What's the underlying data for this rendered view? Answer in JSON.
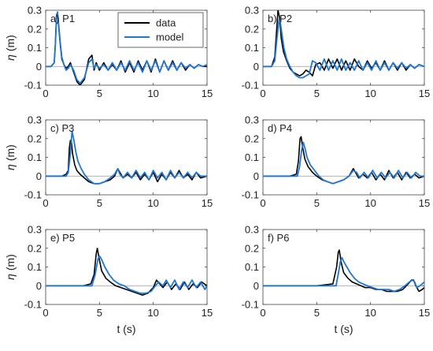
{
  "colors": {
    "data": "#000000",
    "model": "#1f77d0",
    "zero_line": "#999999",
    "axis": "#444444"
  },
  "legend": {
    "items": [
      {
        "label": "data",
        "color": "#000000"
      },
      {
        "label": "model",
        "color": "#1f77d0"
      }
    ],
    "placement": "top-right of panel a"
  },
  "chart_data": [
    {
      "type": "line",
      "panel": "a) P1",
      "xlabel": "",
      "ylabel": "η (m)",
      "xlim": [
        0,
        15
      ],
      "ylim": [
        -0.1,
        0.3
      ],
      "xticks": [
        0,
        5,
        10,
        15
      ],
      "yticks": [
        -0.1,
        0,
        0.1,
        0.2,
        0.3
      ],
      "series": [
        {
          "name": "data",
          "x": [
            0,
            0.5,
            0.8,
            0.9,
            1.0,
            1.1,
            1.2,
            1.35,
            1.5,
            1.7,
            1.9,
            2.1,
            2.3,
            2.6,
            2.9,
            3.2,
            3.6,
            4.0,
            4.3,
            4.5,
            4.7,
            5.0,
            5.4,
            5.8,
            6.2,
            6.6,
            7.0,
            7.4,
            7.8,
            8.2,
            8.6,
            9.0,
            9.4,
            9.8,
            10.2,
            10.6,
            11.0,
            11.4,
            11.8,
            12.2,
            12.6,
            13.0,
            13.4,
            13.8,
            14.2,
            14.6,
            15
          ],
          "y": [
            0,
            0,
            0.02,
            0.12,
            0.27,
            0.29,
            0.22,
            0.12,
            0.04,
            0.01,
            -0.01,
            0.0,
            0.02,
            -0.03,
            -0.08,
            -0.1,
            -0.07,
            0.04,
            0.06,
            -0.02,
            0.02,
            -0.02,
            0.02,
            -0.02,
            0.01,
            -0.02,
            0.03,
            -0.03,
            0.02,
            -0.03,
            0.03,
            -0.02,
            0.03,
            -0.03,
            0.04,
            -0.03,
            0.03,
            -0.02,
            0.03,
            -0.02,
            0.02,
            -0.02,
            0.01,
            -0.01,
            0.01,
            0,
            0
          ]
        },
        {
          "name": "model",
          "x": [
            0,
            0.5,
            0.8,
            0.9,
            1.0,
            1.1,
            1.2,
            1.35,
            1.5,
            1.7,
            1.9,
            2.1,
            2.3,
            2.6,
            2.9,
            3.2,
            3.6,
            4.0,
            4.3,
            4.5,
            4.7,
            5.0,
            5.4,
            5.8,
            6.2,
            6.6,
            7.0,
            7.4,
            7.8,
            8.2,
            8.6,
            9.0,
            9.4,
            9.8,
            10.2,
            10.6,
            11.0,
            11.4,
            11.8,
            12.2,
            12.6,
            13.0,
            13.4,
            13.8,
            14.2,
            14.6,
            15
          ],
          "y": [
            0,
            0,
            0.02,
            0.11,
            0.25,
            0.29,
            0.23,
            0.13,
            0.05,
            0.01,
            -0.02,
            -0.01,
            0.01,
            -0.02,
            -0.07,
            -0.09,
            -0.06,
            0.02,
            0.04,
            -0.01,
            0.01,
            -0.01,
            0.01,
            -0.02,
            0.02,
            -0.02,
            0.02,
            -0.02,
            0.03,
            -0.02,
            0.02,
            -0.03,
            0.03,
            -0.02,
            0.03,
            -0.03,
            0.03,
            -0.02,
            0.02,
            -0.02,
            0.02,
            -0.01,
            0.01,
            -0.01,
            0.01,
            0,
            0.01
          ]
        }
      ]
    },
    {
      "type": "line",
      "panel": "b) P2",
      "xlabel": "",
      "ylabel": "",
      "xlim": [
        0,
        15
      ],
      "ylim": [
        -0.1,
        0.3
      ],
      "xticks": [
        0,
        5,
        10,
        15
      ],
      "yticks": [
        -0.1,
        0,
        0.1,
        0.2,
        0.3
      ],
      "series": [
        {
          "name": "data",
          "x": [
            0,
            0.8,
            1.1,
            1.3,
            1.4,
            1.55,
            1.7,
            1.9,
            2.2,
            2.5,
            2.8,
            3.1,
            3.4,
            3.7,
            4.0,
            4.3,
            4.6,
            4.9,
            5.3,
            5.7,
            6.1,
            6.5,
            6.9,
            7.3,
            7.7,
            8.1,
            8.5,
            8.9,
            9.3,
            9.7,
            10.1,
            10.5,
            10.9,
            11.3,
            11.7,
            12.1,
            12.5,
            12.9,
            13.3,
            13.7,
            14.1,
            14.5,
            15
          ],
          "y": [
            0,
            0.0,
            0.05,
            0.22,
            0.3,
            0.26,
            0.15,
            0.08,
            0.03,
            -0.01,
            -0.03,
            -0.04,
            -0.05,
            -0.04,
            -0.02,
            -0.03,
            -0.05,
            0.01,
            0.02,
            -0.02,
            0.04,
            -0.01,
            0.04,
            -0.02,
            0.03,
            -0.02,
            0.04,
            0.0,
            -0.02,
            0.03,
            -0.01,
            0.02,
            -0.02,
            0.03,
            -0.02,
            0.02,
            -0.02,
            0.02,
            -0.02,
            0.01,
            -0.01,
            0.01,
            0
          ]
        },
        {
          "name": "model",
          "x": [
            0,
            0.8,
            1.1,
            1.3,
            1.5,
            1.6,
            1.75,
            1.95,
            2.2,
            2.5,
            2.8,
            3.1,
            3.4,
            3.7,
            4.0,
            4.3,
            4.6,
            4.9,
            5.3,
            5.7,
            6.1,
            6.5,
            6.9,
            7.3,
            7.7,
            8.1,
            8.5,
            8.9,
            9.3,
            9.7,
            10.1,
            10.5,
            10.9,
            11.3,
            11.7,
            12.1,
            12.5,
            12.9,
            13.3,
            13.7,
            14.1,
            14.5,
            15
          ],
          "y": [
            0,
            0.0,
            0.03,
            0.15,
            0.25,
            0.24,
            0.18,
            0.1,
            0.04,
            0.0,
            -0.03,
            -0.05,
            -0.06,
            -0.06,
            -0.05,
            -0.04,
            0.03,
            0.02,
            -0.02,
            0.04,
            -0.02,
            0.03,
            -0.02,
            0.04,
            -0.02,
            0.02,
            -0.02,
            0.03,
            -0.02,
            0.02,
            -0.02,
            0.03,
            -0.02,
            0.02,
            -0.02,
            0.02,
            -0.01,
            0.02,
            -0.01,
            0.01,
            -0.01,
            0.01,
            0
          ]
        }
      ]
    },
    {
      "type": "line",
      "panel": "c) P3",
      "xlabel": "",
      "ylabel": "η (m)",
      "xlim": [
        0,
        15
      ],
      "ylim": [
        -0.1,
        0.3
      ],
      "xticks": [
        0,
        5,
        10,
        15
      ],
      "yticks": [
        -0.1,
        0,
        0.1,
        0.2,
        0.3
      ],
      "series": [
        {
          "name": "data",
          "x": [
            0,
            1.5,
            1.9,
            2.1,
            2.2,
            2.3,
            2.4,
            2.5,
            2.7,
            2.9,
            3.2,
            3.6,
            4.0,
            4.5,
            5.0,
            5.5,
            6.0,
            6.4,
            6.7,
            6.9,
            7.2,
            7.6,
            8.0,
            8.4,
            8.8,
            9.2,
            9.6,
            10.0,
            10.4,
            10.8,
            11.2,
            11.6,
            12.0,
            12.4,
            12.8,
            13.2,
            13.6,
            14.0,
            14.4,
            15
          ],
          "y": [
            0,
            0.0,
            0.01,
            0.03,
            0.15,
            0.19,
            0.18,
            0.12,
            0.06,
            0.03,
            0.01,
            -0.01,
            -0.03,
            -0.04,
            -0.04,
            -0.03,
            -0.02,
            0.0,
            0.04,
            0.02,
            -0.01,
            0.01,
            -0.01,
            0.02,
            -0.02,
            0.01,
            -0.02,
            0.02,
            -0.03,
            0.01,
            -0.02,
            0.02,
            -0.01,
            0.03,
            -0.01,
            0.01,
            -0.02,
            0.02,
            -0.01,
            0
          ]
        },
        {
          "name": "model",
          "x": [
            0,
            1.5,
            1.9,
            2.1,
            2.3,
            2.45,
            2.6,
            2.8,
            3.0,
            3.3,
            3.6,
            4.0,
            4.5,
            5.0,
            5.5,
            6.0,
            6.4,
            6.7,
            6.9,
            7.2,
            7.6,
            8.0,
            8.4,
            8.8,
            9.2,
            9.6,
            10.0,
            10.4,
            10.8,
            11.2,
            11.6,
            12.0,
            12.4,
            12.8,
            13.2,
            13.6,
            14.0,
            14.4,
            15
          ],
          "y": [
            0,
            0.0,
            0.0,
            0.02,
            0.12,
            0.24,
            0.2,
            0.13,
            0.08,
            0.04,
            0.01,
            -0.02,
            -0.04,
            -0.04,
            -0.03,
            -0.01,
            0.01,
            0.04,
            0.01,
            -0.01,
            0.02,
            -0.01,
            0.03,
            -0.01,
            0.02,
            -0.02,
            0.03,
            -0.01,
            0.02,
            -0.02,
            0.03,
            -0.01,
            0.02,
            -0.01,
            0.02,
            -0.01,
            0.02,
            0.0,
            0
          ]
        }
      ]
    },
    {
      "type": "line",
      "panel": "d) P4",
      "xlabel": "",
      "ylabel": "",
      "xlim": [
        0,
        15
      ],
      "ylim": [
        -0.1,
        0.3
      ],
      "xticks": [
        0,
        5,
        10,
        15
      ],
      "yticks": [
        -0.1,
        0,
        0.1,
        0.2,
        0.3
      ],
      "series": [
        {
          "name": "data",
          "x": [
            0,
            2.5,
            3.1,
            3.3,
            3.45,
            3.55,
            3.7,
            3.9,
            4.2,
            4.6,
            5.0,
            5.5,
            6.0,
            6.5,
            7.0,
            7.5,
            8.0,
            8.4,
            8.6,
            8.9,
            9.3,
            9.7,
            10.1,
            10.5,
            10.9,
            11.3,
            11.7,
            12.1,
            12.5,
            12.9,
            13.3,
            13.7,
            14.1,
            14.5,
            15
          ],
          "y": [
            0,
            0.0,
            0.01,
            0.08,
            0.2,
            0.21,
            0.15,
            0.09,
            0.05,
            0.02,
            0.0,
            -0.02,
            -0.03,
            -0.04,
            -0.03,
            -0.02,
            0.0,
            0.04,
            0.02,
            -0.01,
            0.01,
            -0.01,
            0.02,
            -0.02,
            0.01,
            -0.02,
            0.03,
            -0.01,
            0.02,
            -0.02,
            0.02,
            -0.01,
            0.01,
            -0.01,
            0
          ]
        },
        {
          "name": "model",
          "x": [
            0,
            2.5,
            3.2,
            3.4,
            3.6,
            3.75,
            3.9,
            4.1,
            4.4,
            4.8,
            5.2,
            5.6,
            6.0,
            6.5,
            7.0,
            7.5,
            8.0,
            8.4,
            8.7,
            9.0,
            9.4,
            9.8,
            10.2,
            10.6,
            11.0,
            11.4,
            11.8,
            12.2,
            12.6,
            13.0,
            13.4,
            13.8,
            14.2,
            14.6,
            15
          ],
          "y": [
            0,
            0.0,
            0.0,
            0.05,
            0.14,
            0.18,
            0.15,
            0.1,
            0.06,
            0.03,
            0.0,
            -0.02,
            -0.03,
            -0.04,
            -0.03,
            -0.02,
            0.0,
            0.03,
            0.02,
            -0.01,
            0.02,
            -0.01,
            0.03,
            -0.01,
            0.02,
            -0.01,
            0.02,
            -0.01,
            0.03,
            -0.01,
            0.02,
            -0.01,
            0.02,
            0.0,
            0
          ]
        }
      ]
    },
    {
      "type": "line",
      "panel": "e) P5",
      "xlabel": "t (s)",
      "ylabel": "η (m)",
      "xlim": [
        0,
        15
      ],
      "ylim": [
        -0.1,
        0.3
      ],
      "xticks": [
        0,
        5,
        10,
        15
      ],
      "yticks": [
        -0.1,
        0,
        0.1,
        0.2,
        0.3
      ],
      "series": [
        {
          "name": "data",
          "x": [
            0,
            3.5,
            4.2,
            4.5,
            4.7,
            4.8,
            4.95,
            5.2,
            5.6,
            6.0,
            6.5,
            7.0,
            7.5,
            8.0,
            8.5,
            9.0,
            9.5,
            10.0,
            10.3,
            10.6,
            10.9,
            11.3,
            11.7,
            12.1,
            12.5,
            12.9,
            13.3,
            13.7,
            14.1,
            14.5,
            15
          ],
          "y": [
            0,
            0.0,
            0.01,
            0.06,
            0.17,
            0.2,
            0.15,
            0.08,
            0.04,
            0.02,
            0.0,
            -0.01,
            -0.02,
            -0.03,
            -0.04,
            -0.05,
            -0.04,
            -0.01,
            0.03,
            0.01,
            -0.01,
            0.02,
            -0.02,
            0.01,
            -0.02,
            0.02,
            -0.02,
            0.01,
            -0.01,
            0.02,
            0
          ]
        },
        {
          "name": "model",
          "x": [
            0,
            3.5,
            4.3,
            4.6,
            4.85,
            5.0,
            5.2,
            5.5,
            5.9,
            6.3,
            6.8,
            7.3,
            7.8,
            8.3,
            8.8,
            9.3,
            9.8,
            10.2,
            10.5,
            10.9,
            11.2,
            11.6,
            12.0,
            12.4,
            12.8,
            13.2,
            13.6,
            14.0,
            14.4,
            14.8,
            15
          ],
          "y": [
            0,
            0.0,
            0.0,
            0.06,
            0.14,
            0.16,
            0.14,
            0.1,
            0.06,
            0.03,
            0.01,
            0.0,
            -0.02,
            -0.03,
            -0.04,
            -0.04,
            -0.03,
            0.0,
            0.02,
            0.0,
            0.03,
            -0.01,
            0.03,
            -0.02,
            0.02,
            -0.01,
            0.03,
            -0.01,
            0.02,
            -0.02,
            0
          ]
        }
      ]
    },
    {
      "type": "line",
      "panel": "f) P6",
      "xlabel": "t (s)",
      "ylabel": "",
      "xlim": [
        0,
        15
      ],
      "ylim": [
        -0.1,
        0.3
      ],
      "xticks": [
        0,
        5,
        10,
        15
      ],
      "yticks": [
        -0.1,
        0,
        0.1,
        0.2,
        0.3
      ],
      "series": [
        {
          "name": "data",
          "x": [
            0,
            5.0,
            6.5,
            6.85,
            7.0,
            7.1,
            7.25,
            7.5,
            7.9,
            8.3,
            8.7,
            9.1,
            9.5,
            10.0,
            10.5,
            11.0,
            11.5,
            12.0,
            12.5,
            13.0,
            13.5,
            13.8,
            14.0,
            14.2,
            14.5,
            14.8,
            15
          ],
          "y": [
            0,
            0.0,
            0.01,
            0.1,
            0.18,
            0.19,
            0.13,
            0.07,
            0.04,
            0.02,
            0.01,
            0.0,
            -0.01,
            -0.01,
            -0.02,
            -0.02,
            -0.03,
            -0.03,
            -0.03,
            -0.02,
            0.01,
            0.03,
            0.03,
            0.0,
            -0.03,
            -0.02,
            -0.01
          ]
        },
        {
          "name": "model",
          "x": [
            0,
            5.0,
            6.8,
            7.05,
            7.2,
            7.35,
            7.5,
            7.8,
            8.1,
            8.5,
            8.9,
            9.3,
            9.7,
            10.2,
            10.7,
            11.2,
            11.7,
            12.2,
            12.7,
            13.2,
            13.6,
            13.9,
            14.1,
            14.3,
            14.6,
            15
          ],
          "y": [
            0,
            0.0,
            0.0,
            0.08,
            0.13,
            0.15,
            0.13,
            0.1,
            0.07,
            0.04,
            0.02,
            0.01,
            0.0,
            -0.01,
            -0.02,
            -0.02,
            -0.02,
            -0.03,
            -0.02,
            0.0,
            0.02,
            0.03,
            0.02,
            -0.01,
            0.0,
            0.02
          ]
        }
      ]
    }
  ]
}
